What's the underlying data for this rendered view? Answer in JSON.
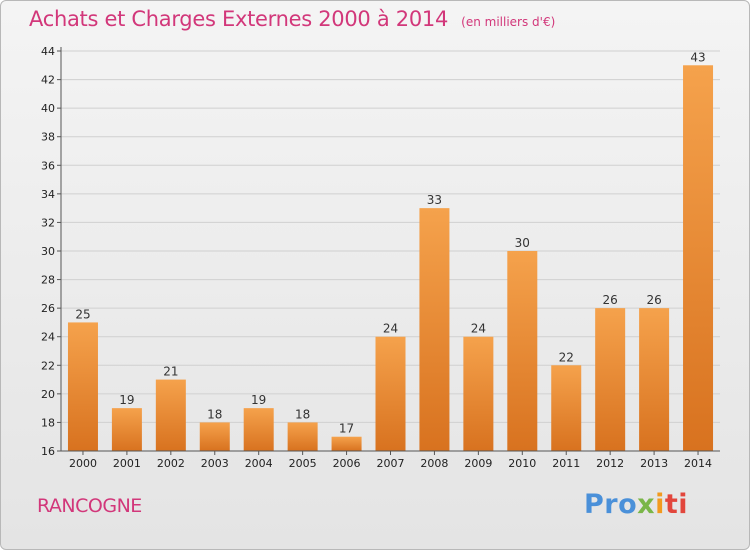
{
  "title": "Achats et Charges Externes 2000 à 2014",
  "unit_note": "(en milliers d'€)",
  "place_name": "RANCOGNE",
  "brand": {
    "part1": "Pro",
    "part2": "x",
    "part3": "i",
    "part4": "ti"
  },
  "colors": {
    "bar_light": "#f5a24c",
    "bar_dark": "#d8721f",
    "title": "#d2377a",
    "grid": "#d0d0d0"
  },
  "chart_data": {
    "type": "bar",
    "title": "Achats et Charges Externes 2000 à 2014",
    "xlabel": "",
    "ylabel": "(en milliers d'€)",
    "categories": [
      "2000",
      "2001",
      "2002",
      "2003",
      "2004",
      "2005",
      "2006",
      "2007",
      "2008",
      "2009",
      "2010",
      "2011",
      "2012",
      "2013",
      "2014"
    ],
    "values": [
      25,
      19,
      21,
      18,
      19,
      18,
      17,
      24,
      33,
      24,
      30,
      22,
      26,
      26,
      43
    ],
    "ylim": [
      16,
      44
    ],
    "yticks": [
      16,
      18,
      20,
      22,
      24,
      26,
      28,
      30,
      32,
      34,
      36,
      38,
      40,
      42,
      44
    ],
    "grid": true,
    "legend": "none"
  }
}
